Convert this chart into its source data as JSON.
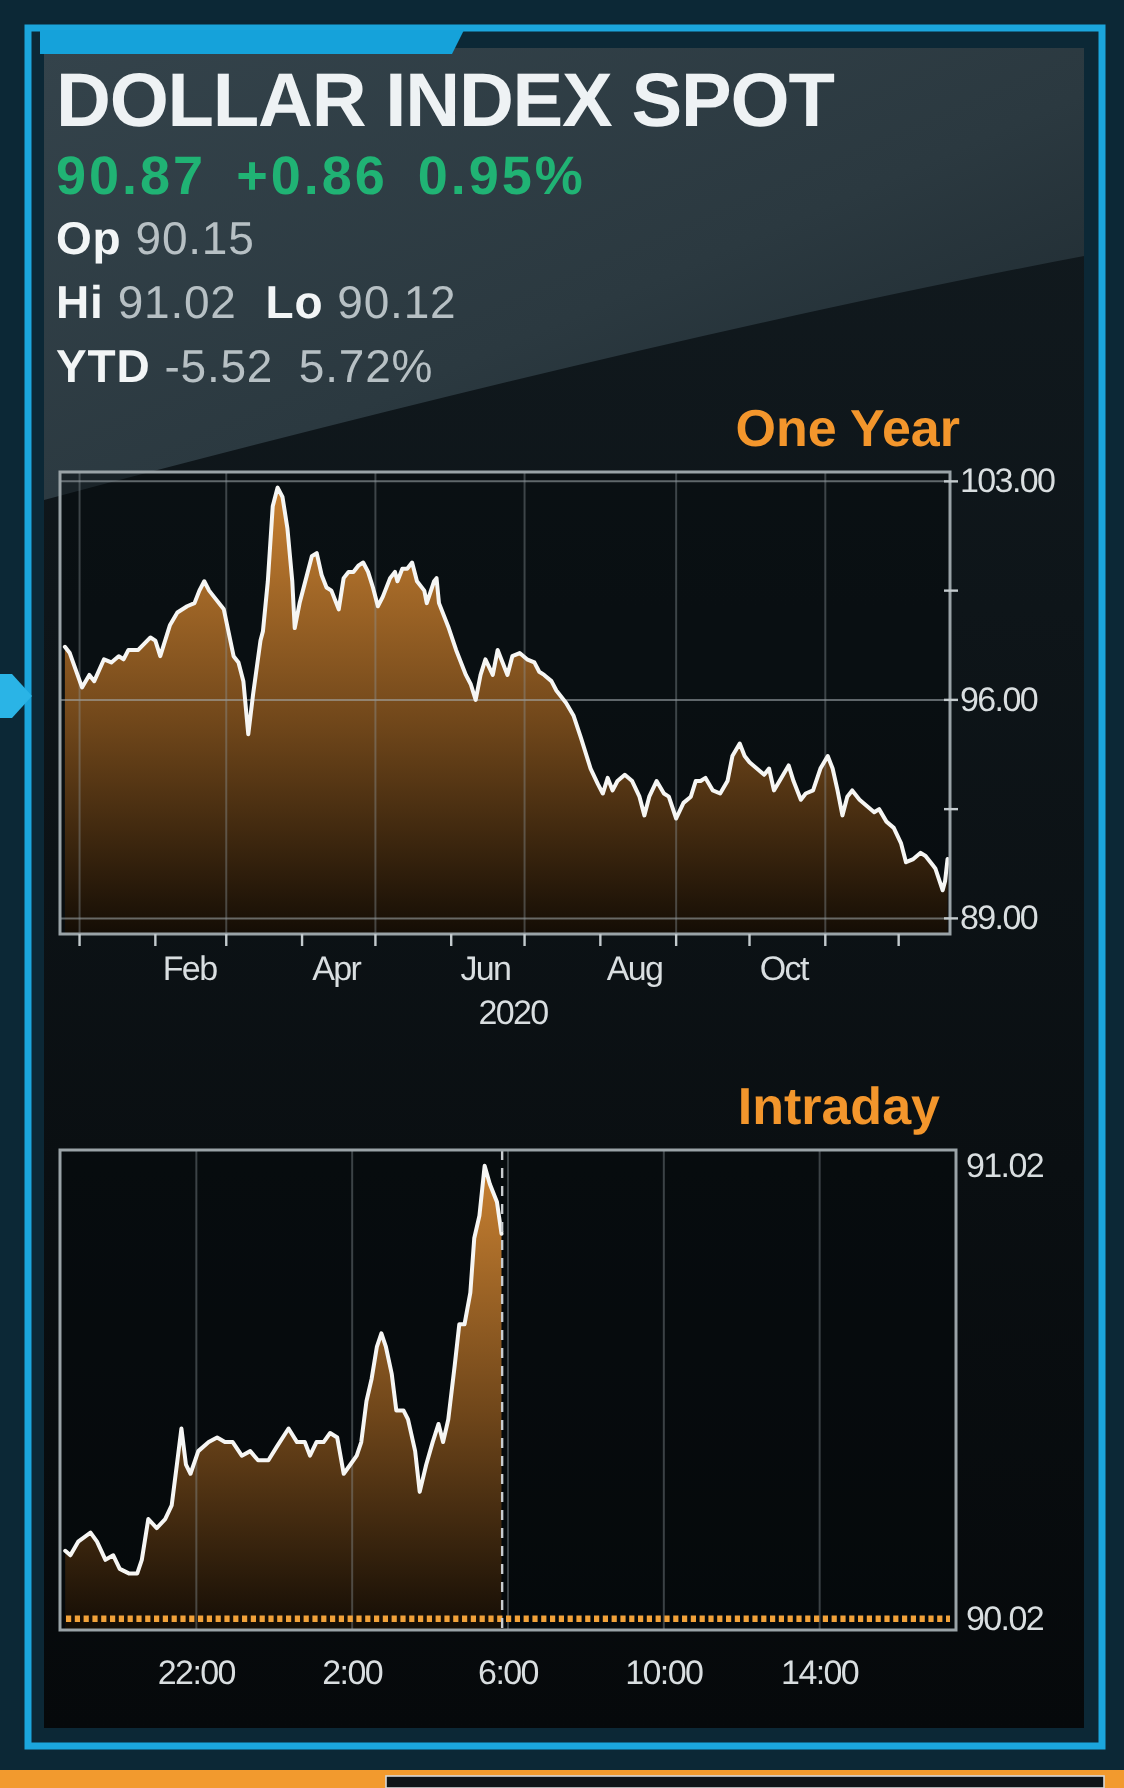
{
  "chart_data": [
    {
      "type": "other",
      "title": "DOLLAR INDEX SPOT",
      "subtitle": "90.87 +0.86 0.95%",
      "annotations": [
        "Op 90.15",
        "Hi 91.02",
        "Lo 90.12",
        "YTD -5.52 5.72%"
      ]
    },
    {
      "type": "area",
      "title": "One Year",
      "xlabel": "2020",
      "color": "#c97f2f",
      "grid": true,
      "xlim": [
        "2019-12-24",
        "2020-12-22"
      ],
      "ylim": [
        88.5,
        103.3
      ],
      "xticks": [
        {
          "value": "2020-01-01",
          "label": null
        },
        {
          "value": "2020-02-01",
          "label": null
        },
        {
          "value": "2020-02-15",
          "label": "Feb"
        },
        {
          "value": "2020-03-01",
          "label": null
        },
        {
          "value": "2020-04-01",
          "label": null
        },
        {
          "value": "2020-04-15",
          "label": "Apr"
        },
        {
          "value": "2020-05-01",
          "label": null
        },
        {
          "value": "2020-06-01",
          "label": null
        },
        {
          "value": "2020-06-15",
          "label": "Jun"
        },
        {
          "value": "2020-07-01",
          "label": null
        },
        {
          "value": "2020-08-01",
          "label": null
        },
        {
          "value": "2020-08-15",
          "label": "Aug"
        },
        {
          "value": "2020-09-01",
          "label": null
        },
        {
          "value": "2020-10-01",
          "label": null
        },
        {
          "value": "2020-10-15",
          "label": "Oct"
        },
        {
          "value": "2020-11-01",
          "label": null
        },
        {
          "value": "2020-12-01",
          "label": null
        }
      ],
      "yticks": [
        {
          "value": 89,
          "label": "89.00"
        },
        {
          "value": 92.5,
          "label": null
        },
        {
          "value": 96,
          "label": "96.00"
        },
        {
          "value": 99.5,
          "label": null
        },
        {
          "value": 103,
          "label": "103.00"
        }
      ],
      "x": [
        "2019-12-26",
        "2019-12-28",
        "2020-01-02",
        "2020-01-05",
        "2020-01-07",
        "2020-01-11",
        "2020-01-14",
        "2020-01-17",
        "2020-01-19",
        "2020-01-21",
        "2020-01-25",
        "2020-01-30",
        "2020-02-01",
        "2020-02-03",
        "2020-02-07",
        "2020-02-10",
        "2020-02-14",
        "2020-02-17",
        "2020-02-19",
        "2020-02-21",
        "2020-02-23",
        "2020-02-25",
        "2020-02-29",
        "2020-03-04",
        "2020-03-06",
        "2020-03-08",
        "2020-03-10",
        "2020-03-12",
        "2020-03-15",
        "2020-03-16",
        "2020-03-18",
        "2020-03-20",
        "2020-03-22",
        "2020-03-24",
        "2020-03-26",
        "2020-03-28",
        "2020-03-29",
        "2020-03-31",
        "2020-04-02",
        "2020-04-05",
        "2020-04-07",
        "2020-04-09",
        "2020-04-11",
        "2020-04-13",
        "2020-04-16",
        "2020-04-18",
        "2020-04-20",
        "2020-04-22",
        "2020-04-24",
        "2020-04-26",
        "2020-04-28",
        "2020-04-30",
        "2020-05-02",
        "2020-05-04",
        "2020-05-07",
        "2020-05-09",
        "2020-05-10",
        "2020-05-12",
        "2020-05-14",
        "2020-05-16",
        "2020-05-18",
        "2020-05-21",
        "2020-05-22",
        "2020-05-25",
        "2020-05-26",
        "2020-05-27",
        "2020-05-31",
        "2020-06-03",
        "2020-06-07",
        "2020-06-09",
        "2020-06-11",
        "2020-06-13",
        "2020-06-15",
        "2020-06-18",
        "2020-06-20",
        "2020-06-22",
        "2020-06-24",
        "2020-06-26",
        "2020-06-29",
        "2020-07-02",
        "2020-07-05",
        "2020-07-07",
        "2020-07-09",
        "2020-07-12",
        "2020-07-14",
        "2020-07-18",
        "2020-07-21",
        "2020-07-24",
        "2020-07-28",
        "2020-07-31",
        "2020-08-02",
        "2020-08-04",
        "2020-08-06",
        "2020-08-08",
        "2020-08-11",
        "2020-08-14",
        "2020-08-17",
        "2020-08-19",
        "2020-08-21",
        "2020-08-24",
        "2020-08-27",
        "2020-08-29",
        "2020-09-01",
        "2020-09-04",
        "2020-09-07",
        "2020-09-09",
        "2020-09-11",
        "2020-09-13",
        "2020-09-16",
        "2020-09-19",
        "2020-09-22",
        "2020-09-24",
        "2020-09-27",
        "2020-09-29",
        "2020-10-01",
        "2020-10-04",
        "2020-10-07",
        "2020-10-09",
        "2020-10-11",
        "2020-10-14",
        "2020-10-17",
        "2020-10-19",
        "2020-10-22",
        "2020-10-24",
        "2020-10-27",
        "2020-10-30",
        "2020-11-02",
        "2020-11-04",
        "2020-11-06",
        "2020-11-08",
        "2020-11-10",
        "2020-11-12",
        "2020-11-15",
        "2020-11-18",
        "2020-11-21",
        "2020-11-23",
        "2020-11-26",
        "2020-11-29",
        "2020-12-02",
        "2020-12-04",
        "2020-12-07",
        "2020-12-10",
        "2020-12-12",
        "2020-12-15",
        "2020-12-16",
        "2020-12-19",
        "2020-12-20",
        "2020-12-21"
      ],
      "values": [
        97.7,
        97.5,
        96.4,
        96.8,
        96.6,
        97.3,
        97.2,
        97.4,
        97.3,
        97.6,
        97.6,
        98.0,
        97.9,
        97.4,
        98.4,
        98.8,
        99.0,
        99.1,
        99.5,
        99.8,
        99.5,
        99.3,
        98.9,
        97.4,
        97.2,
        96.6,
        94.9,
        96.2,
        97.9,
        98.2,
        99.8,
        102.2,
        102.8,
        102.5,
        101.5,
        99.8,
        98.3,
        99.1,
        99.7,
        100.6,
        100.7,
        100.0,
        99.6,
        99.5,
        98.9,
        99.9,
        100.1,
        100.1,
        100.3,
        100.4,
        100.1,
        99.6,
        99.0,
        99.3,
        99.9,
        100.1,
        99.8,
        100.2,
        100.2,
        100.4,
        99.8,
        99.5,
        99.1,
        99.8,
        99.9,
        99.1,
        98.3,
        97.6,
        96.8,
        96.5,
        96.0,
        96.8,
        97.3,
        96.8,
        97.6,
        97.2,
        96.8,
        97.4,
        97.5,
        97.3,
        97.2,
        96.9,
        96.8,
        96.6,
        96.3,
        95.9,
        95.5,
        94.8,
        93.8,
        93.3,
        93.0,
        93.5,
        93.1,
        93.4,
        93.6,
        93.4,
        92.9,
        92.3,
        92.9,
        93.4,
        93.0,
        92.9,
        92.2,
        92.7,
        92.9,
        93.4,
        93.4,
        93.5,
        93.1,
        93.0,
        93.4,
        94.2,
        94.6,
        94.2,
        94.0,
        93.8,
        93.6,
        93.8,
        93.1,
        93.5,
        93.9,
        93.4,
        92.8,
        93.0,
        93.1,
        93.8,
        94.2,
        93.8,
        93.1,
        92.3,
        92.9,
        93.1,
        92.8,
        92.6,
        92.4,
        92.5,
        92.1,
        91.9,
        91.4,
        90.8,
        90.9,
        91.1,
        91.0,
        90.7,
        90.6,
        89.9,
        90.2,
        90.9
      ]
    },
    {
      "type": "area",
      "title": "Intraday",
      "color": "#c97f2f",
      "grid": "x",
      "xlim": [
        "2020-12-20T18:30",
        "2020-12-21T17:30"
      ],
      "ylim": [
        89.995,
        91.055
      ],
      "xticks": [
        {
          "value": "2020-12-20T22:00",
          "label": "22:00"
        },
        {
          "value": "2020-12-21T02:00",
          "label": "2:00"
        },
        {
          "value": "2020-12-21T06:00",
          "label": "6:00"
        },
        {
          "value": "2020-12-21T10:00",
          "label": "10:00"
        },
        {
          "value": "2020-12-21T14:00",
          "label": "14:00"
        }
      ],
      "yticks": [
        90.02,
        91.02
      ],
      "ref_lines": [
        {
          "axis": "y",
          "value": 90.02,
          "color": "#f2a23a",
          "line_style": "dotted"
        },
        {
          "axis": "x",
          "value": "2020-12-21T05:51",
          "color": "#c9cdd0",
          "line_style": "dashed"
        }
      ],
      "x": [
        "2020-12-20T18:38",
        "2020-12-20T18:46",
        "2020-12-20T18:58",
        "2020-12-20T19:17",
        "2020-12-20T19:27",
        "2020-12-20T19:40",
        "2020-12-20T19:52",
        "2020-12-20T20:02",
        "2020-12-20T20:16",
        "2020-12-20T20:29",
        "2020-12-20T20:36",
        "2020-12-20T20:46",
        "2020-12-20T20:59",
        "2020-12-20T21:12",
        "2020-12-20T21:22",
        "2020-12-20T21:30",
        "2020-12-20T21:37",
        "2020-12-20T21:44",
        "2020-12-20T21:51",
        "2020-12-20T22:03",
        "2020-12-20T22:19",
        "2020-12-20T22:32",
        "2020-12-20T22:44",
        "2020-12-20T22:56",
        "2020-12-20T23:10",
        "2020-12-20T23:23",
        "2020-12-20T23:35",
        "2020-12-20T23:51",
        "2020-12-21T00:04",
        "2020-12-21T00:22",
        "2020-12-21T00:35",
        "2020-12-21T00:47",
        "2020-12-21T00:55",
        "2020-12-21T01:05",
        "2020-12-21T01:16",
        "2020-12-21T01:26",
        "2020-12-21T01:37",
        "2020-12-21T01:47",
        "2020-12-21T01:57",
        "2020-12-21T02:07",
        "2020-12-21T02:14",
        "2020-12-21T02:22",
        "2020-12-21T02:30",
        "2020-12-21T02:38",
        "2020-12-21T02:45",
        "2020-12-21T02:52",
        "2020-12-21T03:01",
        "2020-12-21T03:08",
        "2020-12-21T03:19",
        "2020-12-21T03:26",
        "2020-12-21T03:37",
        "2020-12-21T03:44",
        "2020-12-21T03:54",
        "2020-12-21T04:04",
        "2020-12-21T04:13",
        "2020-12-21T04:20",
        "2020-12-21T04:28",
        "2020-12-21T04:38",
        "2020-12-21T04:45",
        "2020-12-21T04:53",
        "2020-12-21T05:02",
        "2020-12-21T05:08",
        "2020-12-21T05:16",
        "2020-12-21T05:24",
        "2020-12-21T05:32",
        "2020-12-21T05:43",
        "2020-12-21T05:50"
      ],
      "values": [
        90.17,
        90.16,
        90.19,
        90.21,
        90.19,
        90.15,
        90.16,
        90.13,
        90.12,
        90.12,
        90.15,
        90.24,
        90.22,
        90.24,
        90.27,
        90.36,
        90.44,
        90.36,
        90.34,
        90.39,
        90.41,
        90.42,
        90.41,
        90.41,
        90.38,
        90.39,
        90.37,
        90.37,
        90.4,
        90.44,
        90.41,
        90.41,
        90.38,
        90.41,
        90.41,
        90.43,
        90.42,
        90.34,
        90.36,
        90.38,
        90.41,
        90.5,
        90.55,
        90.62,
        90.65,
        90.62,
        90.56,
        90.48,
        90.48,
        90.46,
        90.39,
        90.3,
        90.36,
        90.41,
        90.45,
        90.41,
        90.46,
        90.58,
        90.67,
        90.67,
        90.74,
        90.86,
        90.91,
        91.02,
        90.98,
        90.94,
        90.87
      ]
    }
  ]
}
